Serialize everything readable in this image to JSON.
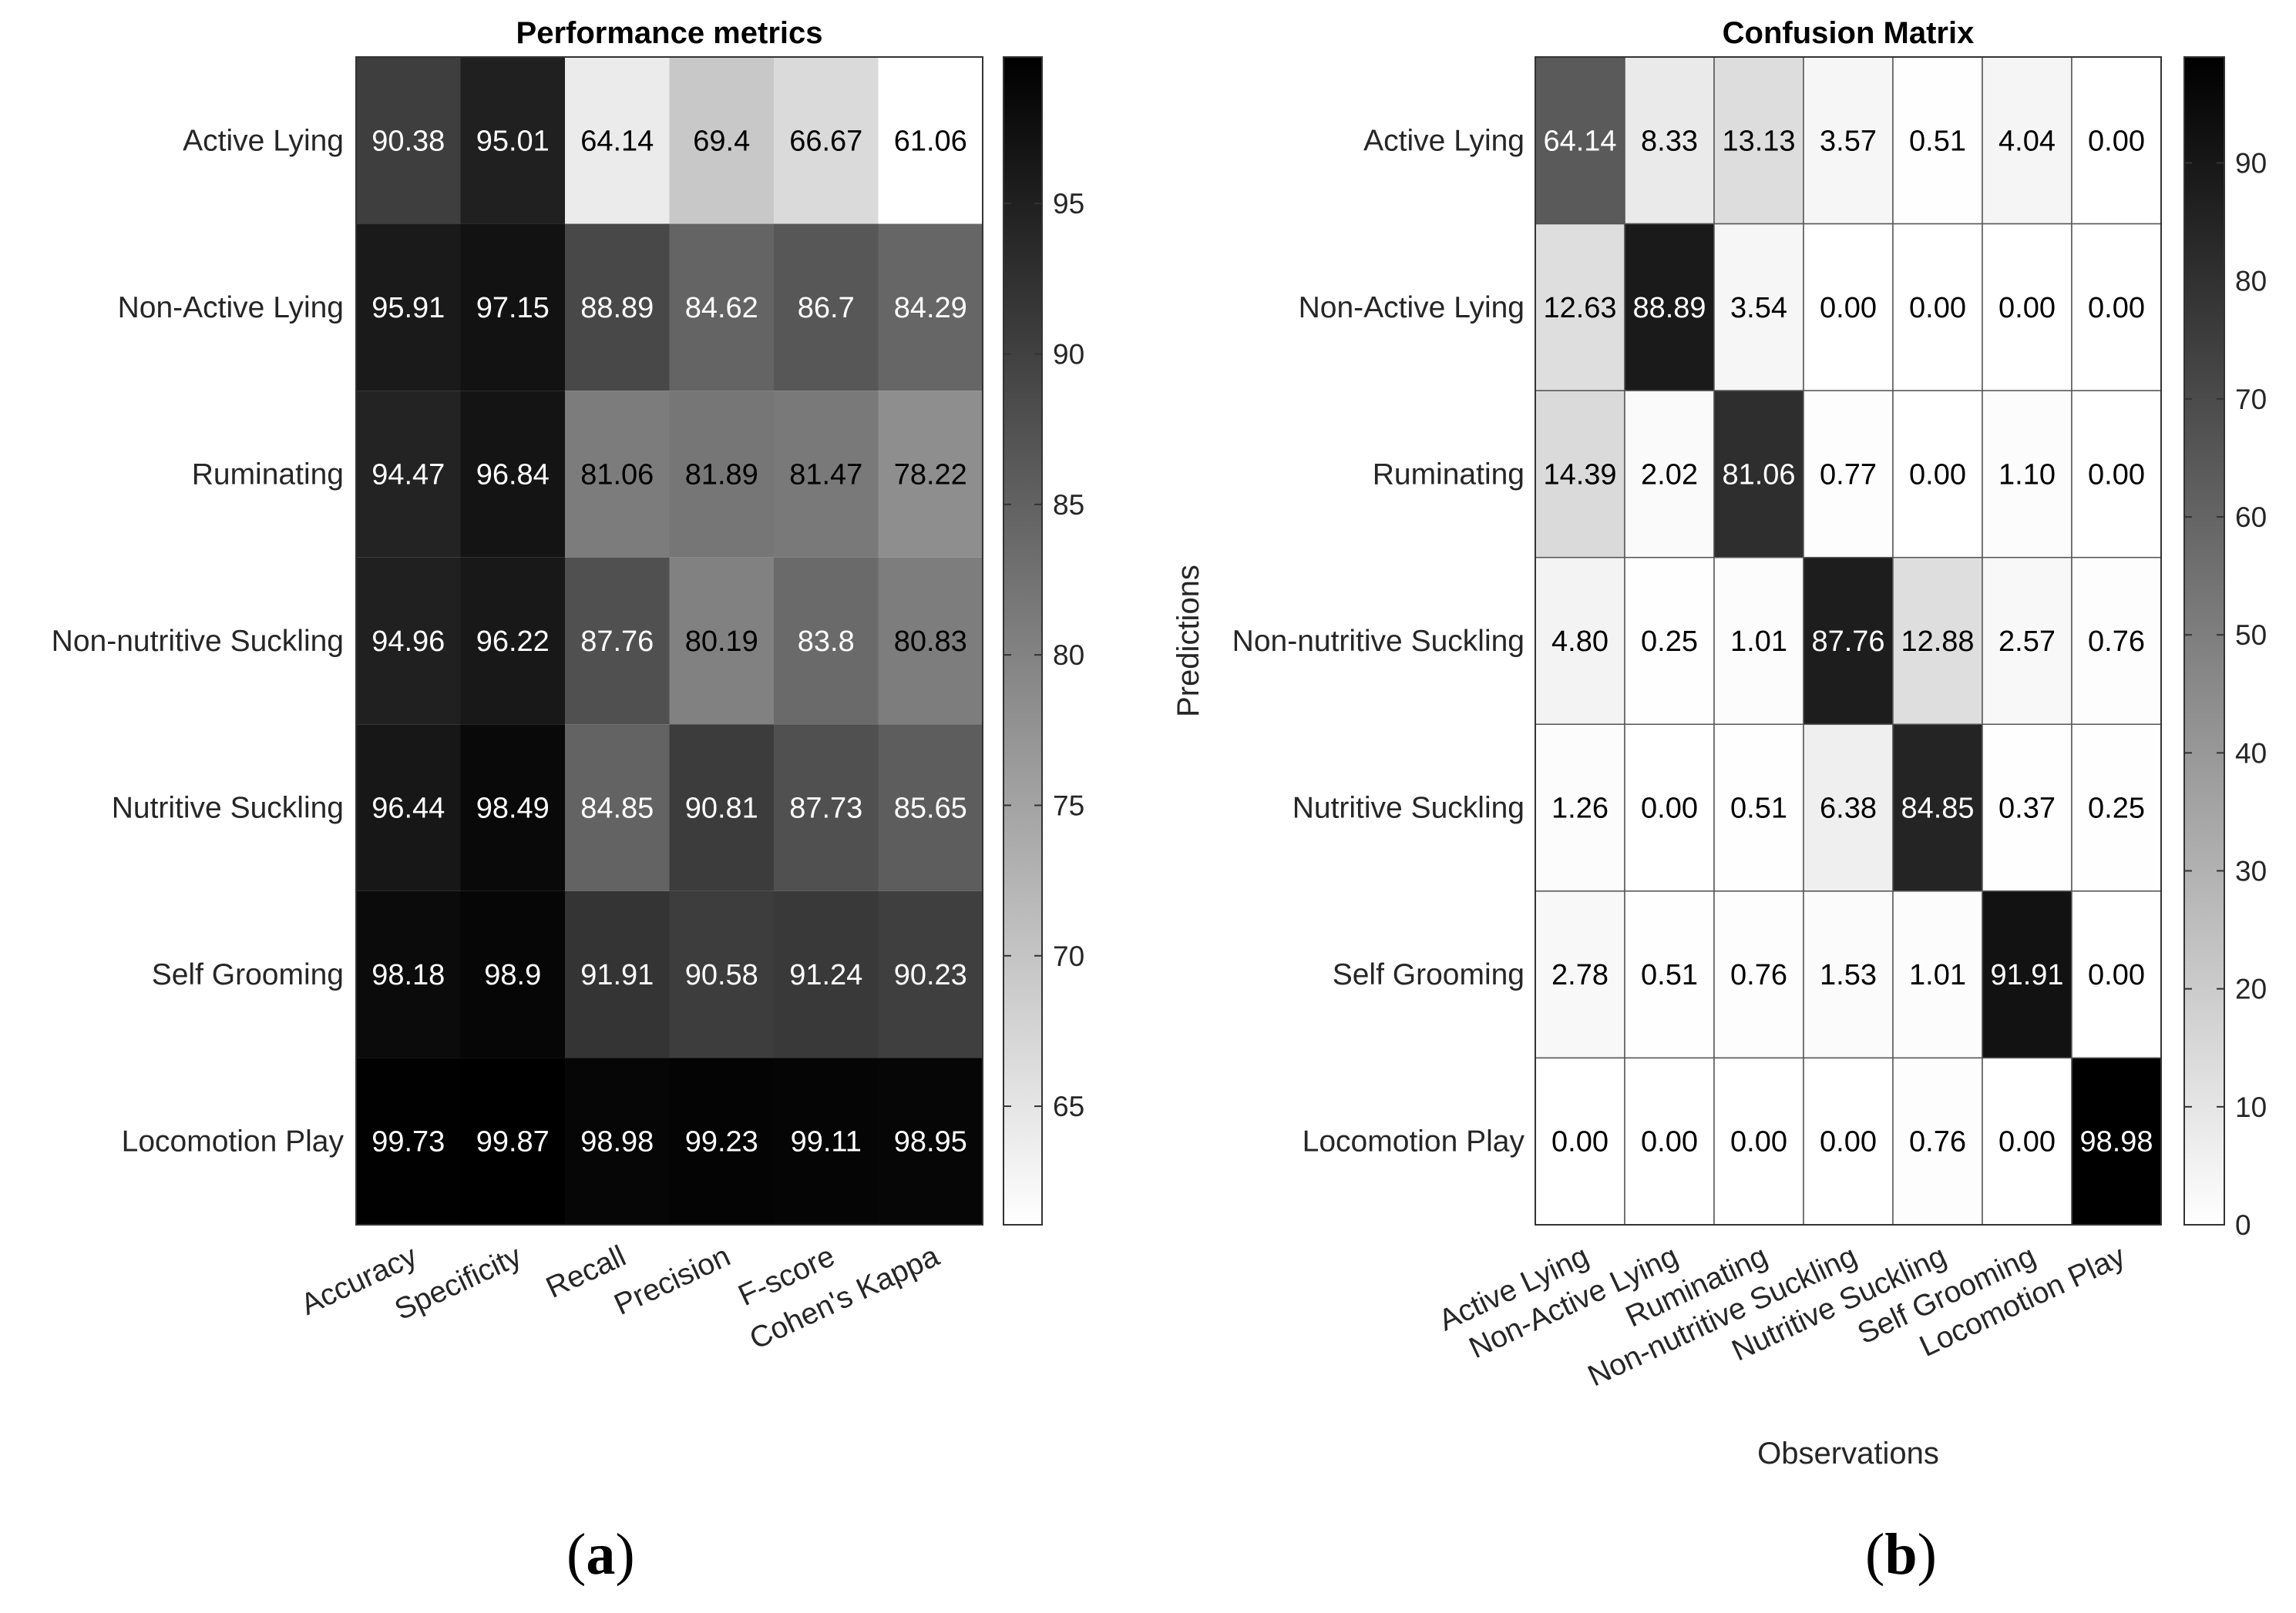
{
  "figure": {
    "panel_labels": [
      {
        "open": "(",
        "letter": "a",
        "close": ")"
      },
      {
        "open": "(",
        "letter": "b",
        "close": ")"
      }
    ]
  },
  "chart_data": [
    {
      "type": "heatmap",
      "title": "Performance metrics",
      "xlabel": "",
      "ylabel": "",
      "rows": [
        "Active Lying",
        "Non-Active Lying",
        "Ruminating",
        "Non-nutritive Suckling",
        "Nutritive Suckling",
        "Self Grooming",
        "Locomotion Play"
      ],
      "columns": [
        "Accuracy",
        "Specificity",
        "Recall",
        "Precision",
        "F-score",
        "Cohen's Kappa"
      ],
      "values": [
        [
          90.38,
          95.01,
          64.14,
          69.4,
          66.67,
          61.06
        ],
        [
          95.91,
          97.15,
          88.89,
          84.62,
          86.7,
          84.29
        ],
        [
          94.47,
          96.84,
          81.06,
          81.89,
          81.47,
          78.22
        ],
        [
          94.96,
          96.22,
          87.76,
          80.19,
          83.8,
          80.83
        ],
        [
          96.44,
          98.49,
          84.85,
          90.81,
          87.73,
          85.65
        ],
        [
          98.18,
          98.9,
          91.91,
          90.58,
          91.24,
          90.23
        ],
        [
          99.73,
          99.87,
          98.98,
          99.23,
          99.11,
          98.95
        ]
      ],
      "labels": [
        [
          "90.38",
          "95.01",
          "64.14",
          "69.4",
          "66.67",
          "61.06"
        ],
        [
          "95.91",
          "97.15",
          "88.89",
          "84.62",
          "86.7",
          "84.29"
        ],
        [
          "94.47",
          "96.84",
          "81.06",
          "81.89",
          "81.47",
          "78.22"
        ],
        [
          "94.96",
          "96.22",
          "87.76",
          "80.19",
          "83.8",
          "80.83"
        ],
        [
          "96.44",
          "98.49",
          "84.85",
          "90.81",
          "87.73",
          "85.65"
        ],
        [
          "98.18",
          "98.9",
          "91.91",
          "90.58",
          "91.24",
          "90.23"
        ],
        [
          "99.73",
          "99.87",
          "98.98",
          "99.23",
          "99.11",
          "98.95"
        ]
      ],
      "colormap": "gray (white = low, black = high)",
      "clim": [
        61.06,
        99.87
      ],
      "colorbar_ticks": [
        65,
        70,
        75,
        80,
        85,
        90,
        95
      ]
    },
    {
      "type": "heatmap",
      "title": "Confusion Matrix",
      "xlabel": "Observations",
      "ylabel": "Predictions",
      "rows": [
        "Active Lying",
        "Non-Active Lying",
        "Ruminating",
        "Non-nutritive Suckling",
        "Nutritive Suckling",
        "Self Grooming",
        "Locomotion Play"
      ],
      "columns": [
        "Active Lying",
        "Non-Active Lying",
        "Ruminating",
        "Non-nutritive Suckling",
        "Nutritive Suckling",
        "Self Grooming",
        "Locomotion Play"
      ],
      "values": [
        [
          64.14,
          8.33,
          13.13,
          3.57,
          0.51,
          4.04,
          0.0
        ],
        [
          12.63,
          88.89,
          3.54,
          0.0,
          0.0,
          0.0,
          0.0
        ],
        [
          14.39,
          2.02,
          81.06,
          0.77,
          0.0,
          1.1,
          0.0
        ],
        [
          4.8,
          0.25,
          1.01,
          87.76,
          12.88,
          2.57,
          0.76
        ],
        [
          1.26,
          0.0,
          0.51,
          6.38,
          84.85,
          0.37,
          0.25
        ],
        [
          2.78,
          0.51,
          0.76,
          1.53,
          1.01,
          91.91,
          0.0
        ],
        [
          0.0,
          0.0,
          0.0,
          0.0,
          0.76,
          0.0,
          98.98
        ]
      ],
      "labels": [
        [
          "64.14",
          "8.33",
          "13.13",
          "3.57",
          "0.51",
          "4.04",
          "0.00"
        ],
        [
          "12.63",
          "88.89",
          "3.54",
          "0.00",
          "0.00",
          "0.00",
          "0.00"
        ],
        [
          "14.39",
          "2.02",
          "81.06",
          "0.77",
          "0.00",
          "1.10",
          "0.00"
        ],
        [
          "4.80",
          "0.25",
          "1.01",
          "87.76",
          "12.88",
          "2.57",
          "0.76"
        ],
        [
          "1.26",
          "0.00",
          "0.51",
          "6.38",
          "84.85",
          "0.37",
          "0.25"
        ],
        [
          "2.78",
          "0.51",
          "0.76",
          "1.53",
          "1.01",
          "91.91",
          "0.00"
        ],
        [
          "0.00",
          "0.00",
          "0.00",
          "0.00",
          "0.76",
          "0.00",
          "98.98"
        ]
      ],
      "colormap": "gray (white = low, black = high)",
      "clim": [
        0,
        98.98
      ],
      "colorbar_ticks": [
        0,
        10,
        20,
        30,
        40,
        50,
        60,
        70,
        80,
        90
      ]
    }
  ]
}
